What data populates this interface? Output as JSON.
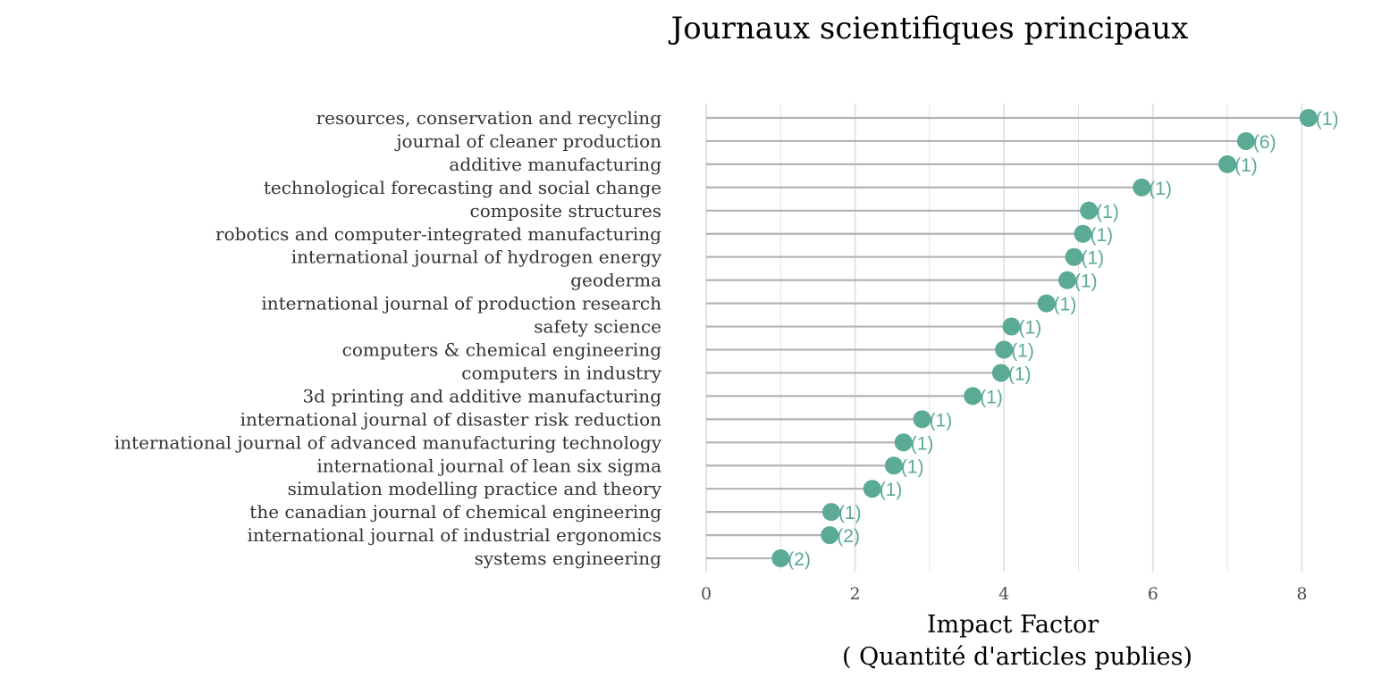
{
  "colors": {
    "point": "#5aaa95",
    "stem": "#b3b3b3",
    "grid": "#e3e3e3"
  },
  "chart_data": {
    "type": "lollipop",
    "title": "Journaux scientifiques principaux",
    "xlabel": "Impact Factor",
    "xlabel_sub": "( Quantité d'articles publies)",
    "xlim": [
      0,
      8.1
    ],
    "xticks": [
      0,
      2,
      4,
      6,
      8
    ],
    "grid": true,
    "categories": [
      "resources, conservation and recycling",
      "journal of cleaner production",
      "additive manufacturing",
      "technological forecasting and social change",
      "composite structures",
      "robotics and computer-integrated manufacturing",
      "international journal of hydrogen energy",
      "geoderma",
      "international journal of production research",
      "safety science",
      "computers & chemical engineering",
      "computers in industry",
      "3d printing and additive manufacturing",
      "international journal of disaster risk reduction",
      "international journal of advanced manufacturing technology",
      "international journal of lean six sigma",
      "simulation modelling practice and theory",
      "the canadian journal of chemical engineering",
      "international journal of industrial ergonomics",
      "systems engineering"
    ],
    "values": [
      8.09,
      7.25,
      7.0,
      5.85,
      5.14,
      5.06,
      4.94,
      4.85,
      4.57,
      4.1,
      4.0,
      3.96,
      3.58,
      2.9,
      2.65,
      2.52,
      2.23,
      1.68,
      1.66,
      1.0
    ],
    "labels": [
      "(1)",
      "(6)",
      "(1)",
      "(1)",
      "(1)",
      "(1)",
      "(1)",
      "(1)",
      "(1)",
      "(1)",
      "(1)",
      "(1)",
      "(1)",
      "(1)",
      "(1)",
      "(1)",
      "(1)",
      "(1)",
      "(2)",
      "(2)"
    ]
  }
}
